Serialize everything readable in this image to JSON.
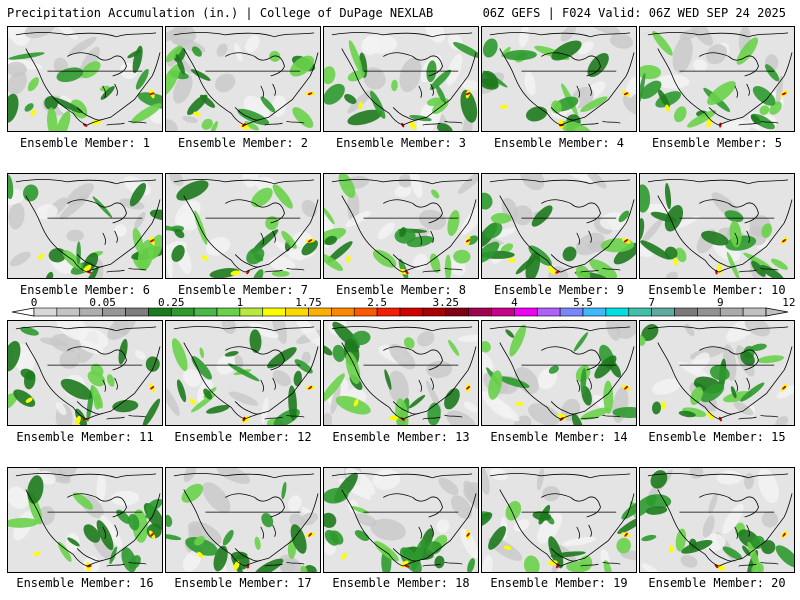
{
  "header": {
    "title_left": "Precipitation Accumulation (in.) | College of DuPage NEXLAB",
    "title_right": "06Z GEFS | F024 Valid: 06Z WED SEP 24 2025"
  },
  "member_label_prefix": "Ensemble Member: ",
  "members": [
    1,
    2,
    3,
    4,
    5,
    6,
    7,
    8,
    9,
    10,
    11,
    12,
    13,
    14,
    15,
    16,
    17,
    18,
    19,
    20
  ],
  "colorbar": {
    "tick_labels": [
      "0",
      "0.05",
      "0.25",
      "1",
      "1.75",
      "2.5",
      "3.25",
      "4",
      "5.5",
      "7",
      "9",
      "12"
    ],
    "colors": [
      "#d8d8d8",
      "#c4c4c4",
      "#aeaeae",
      "#979797",
      "#7e7e7e",
      "#1d7a1d",
      "#2e992e",
      "#48b848",
      "#6ad24a",
      "#b8e840",
      "#fcfc00",
      "#fcd800",
      "#fcb000",
      "#fc8800",
      "#fc5a00",
      "#f02000",
      "#d00000",
      "#a80000",
      "#800014",
      "#a00050",
      "#c8008c",
      "#f000f0",
      "#b060f8",
      "#7888fc",
      "#40b8fc",
      "#00e0e0",
      "#40c0a8",
      "#60a8a0",
      "#7a7a7a",
      "#929292",
      "#aaaaaa",
      "#c0c0c0"
    ]
  },
  "legend_colors": {
    "green_dark": "#1d7a1d",
    "green_mid": "#2e992e",
    "green_light": "#6ad24a",
    "yellow": "#fcfc00",
    "red": "#d00000",
    "magenta": "#c8008c"
  }
}
